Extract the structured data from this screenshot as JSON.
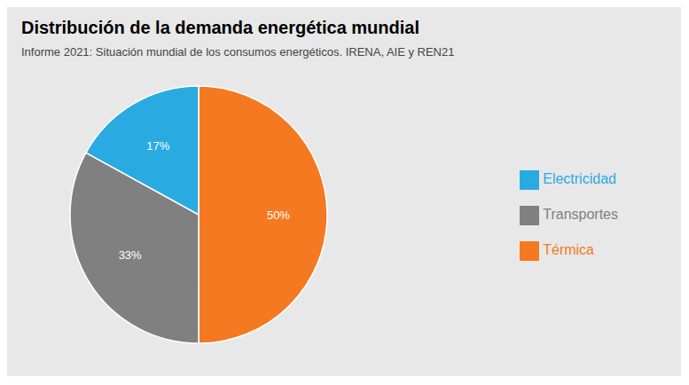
{
  "chart_data": {
    "type": "pie",
    "title": "Distribución de la demanda energética mundial",
    "subtitle": "Informe 2021: Situación mundial de los consumos energéticos. IRENA, AIE y REN21",
    "categories": [
      "Térmica",
      "Transportes",
      "Electricidad"
    ],
    "values": [
      50,
      33,
      17
    ],
    "value_labels": [
      "50%",
      "33%",
      "17%"
    ],
    "colors": [
      "#F47920",
      "#808080",
      "#29ABE2"
    ],
    "data_labels": true,
    "legend": "right"
  }
}
